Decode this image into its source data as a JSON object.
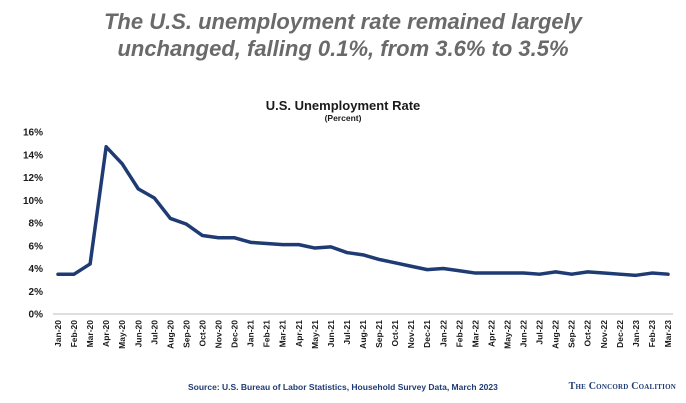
{
  "headline": {
    "line1": "The U.S. unemployment rate remained largely",
    "line2": "unchanged, falling 0.1%, from 3.6% to 3.5%"
  },
  "chart_data": {
    "type": "line",
    "title": "U.S. Unemployment Rate",
    "subtitle": "(Percent)",
    "xlabel": "",
    "ylabel": "",
    "ylim": [
      0,
      16
    ],
    "yticks": [
      "0%",
      "2%",
      "4%",
      "6%",
      "8%",
      "10%",
      "12%",
      "14%",
      "16%"
    ],
    "grid": false,
    "legend": "none",
    "categories": [
      "Jan-20",
      "Feb-20",
      "Mar-20",
      "Apr-20",
      "May-20",
      "Jun-20",
      "Jul-20",
      "Aug-20",
      "Sep-20",
      "Oct-20",
      "Nov-20",
      "Dec-20",
      "Jan-21",
      "Feb-21",
      "Mar-21",
      "Apr-21",
      "May-21",
      "Jun-21",
      "Jul-21",
      "Aug-21",
      "Sep-21",
      "Oct-21",
      "Nov-21",
      "Dec-21",
      "Jan-22",
      "Feb-22",
      "Mar-22",
      "Apr-22",
      "May-22",
      "Jun-22",
      "Jul-22",
      "Aug-22",
      "Sep-22",
      "Oct-22",
      "Nov-22",
      "Dec-22",
      "Jan-23",
      "Feb-23",
      "Mar-23"
    ],
    "series": [
      {
        "color": "#1f3b73",
        "values": [
          3.5,
          3.5,
          4.4,
          14.7,
          13.2,
          11.0,
          10.2,
          8.4,
          7.9,
          6.9,
          6.7,
          6.7,
          6.3,
          6.2,
          6.1,
          6.1,
          5.8,
          5.9,
          5.4,
          5.2,
          4.8,
          4.5,
          4.2,
          3.9,
          4.0,
          3.8,
          3.6,
          3.6,
          3.6,
          3.6,
          3.5,
          3.7,
          3.5,
          3.7,
          3.6,
          3.5,
          3.4,
          3.6,
          3.5
        ]
      }
    ]
  },
  "footer": {
    "source": "Source: U.S. Bureau of Labor Statistics, Household Survey Data, March 2023",
    "brand": "The Concord Coalition"
  }
}
